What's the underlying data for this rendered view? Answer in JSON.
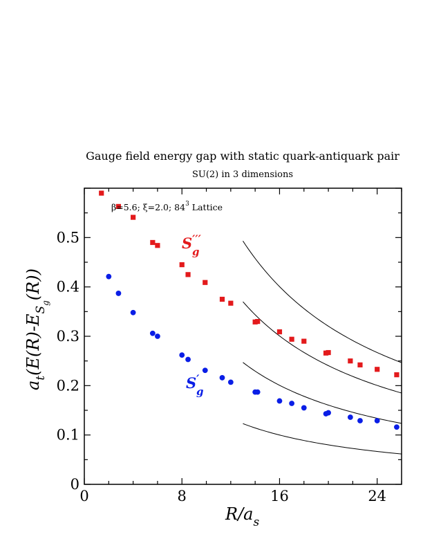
{
  "chart_data": {
    "type": "scatter",
    "title": "Gauge field energy gap with static quark-antiquark pair",
    "subtitle": "SU(2) in 3 dimensions",
    "annotation": {
      "prefix": "β=5.6;  ξ=2.0; 84",
      "sup": "3",
      "suffix": " Lattice"
    },
    "xlabel": {
      "main": "R/a",
      "sub": "s"
    },
    "ylabel": {
      "a": "a",
      "sub_t": "t",
      "mid": "(E(R)-E",
      "sub_S": "S",
      "sub_g": "g",
      "end": "(R))"
    },
    "xlim": [
      0,
      26
    ],
    "ylim": [
      0,
      0.6
    ],
    "xticks": [
      0,
      8,
      16,
      24
    ],
    "yticks": [
      0,
      0.1,
      0.2,
      0.3,
      0.4,
      0.5
    ],
    "xtick_labels": [
      "0",
      "8",
      "16",
      "24"
    ],
    "ytick_labels": [
      "0",
      "0.1",
      "0.2",
      "0.3",
      "0.4",
      "0.5"
    ],
    "grid": false,
    "series": [
      {
        "name": "S'''g",
        "label_main": "S",
        "label_prime": "′′′",
        "label_sub": "g",
        "color": "#e31a1c",
        "marker": "square",
        "x": [
          1.4,
          2.8,
          4.0,
          5.6,
          6.0,
          8.0,
          8.5,
          9.9,
          11.3,
          12.0,
          14.0,
          14.2,
          16.0,
          17.0,
          18.0,
          19.8,
          20.0,
          21.8,
          22.6,
          24.0,
          25.6
        ],
        "y": [
          0.59,
          0.563,
          0.541,
          0.49,
          0.484,
          0.445,
          0.425,
          0.409,
          0.375,
          0.367,
          0.329,
          0.33,
          0.309,
          0.294,
          0.29,
          0.266,
          0.267,
          0.25,
          0.242,
          0.233,
          0.222
        ]
      },
      {
        "name": "S'g",
        "label_main": "S",
        "label_prime": "′",
        "label_sub": "g",
        "color": "#0a1ee6",
        "marker": "circle",
        "x": [
          2.0,
          2.8,
          4.0,
          5.6,
          6.0,
          8.0,
          8.5,
          9.9,
          11.3,
          12.0,
          14.0,
          14.2,
          16.0,
          17.0,
          18.0,
          19.8,
          20.0,
          21.8,
          22.6,
          24.0,
          25.6
        ],
        "y": [
          0.421,
          0.387,
          0.348,
          0.306,
          0.3,
          0.262,
          0.253,
          0.231,
          0.216,
          0.207,
          0.187,
          0.187,
          0.169,
          0.164,
          0.155,
          0.143,
          0.145,
          0.136,
          0.129,
          0.129,
          0.116
        ]
      }
    ],
    "curves": [
      {
        "k": 0.493,
        "x_start": 13.0,
        "x_end": 26.0
      },
      {
        "k": 0.37,
        "x_start": 13.0,
        "x_end": 26.0
      },
      {
        "k": 0.247,
        "x_start": 13.0,
        "x_end": 26.0
      },
      {
        "k": 0.123,
        "x_start": 13.0,
        "x_end": 26.0
      }
    ],
    "colors": {
      "axis": "#000000",
      "curve": "#000000"
    }
  }
}
